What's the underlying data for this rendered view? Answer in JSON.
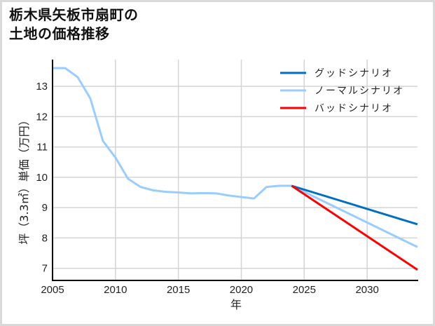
{
  "chart_data": {
    "type": "line",
    "title": "栃木県矢板市扇町の\n土地の価格推移",
    "xlabel": "年",
    "ylabel": "坪（3.3㎡）単価（万円）",
    "xlim": [
      2005,
      2034
    ],
    "ylim": [
      6.6,
      13.88
    ],
    "x_ticks": [
      2005,
      2010,
      2015,
      2020,
      2025,
      2030
    ],
    "y_ticks": [
      7,
      8,
      9,
      10,
      11,
      12,
      13
    ],
    "grid": true,
    "legend_position": "upper right",
    "series": [
      {
        "name": "ノーマルシナリオ",
        "color": "#99ccff",
        "x": [
          2005,
          2006,
          2007,
          2008,
          2009,
          2010,
          2011,
          2012,
          2013,
          2014,
          2015,
          2016,
          2017,
          2018,
          2019,
          2020,
          2021,
          2022,
          2023,
          2024,
          2034
        ],
        "values": [
          13.6,
          13.6,
          13.3,
          12.6,
          11.2,
          10.65,
          9.95,
          9.68,
          9.57,
          9.52,
          9.5,
          9.47,
          9.48,
          9.47,
          9.4,
          9.35,
          9.3,
          9.68,
          9.72,
          9.72,
          7.7
        ]
      },
      {
        "name": "グッドシナリオ",
        "color": "#0070c0",
        "x": [
          2024,
          2034
        ],
        "values": [
          9.72,
          8.45
        ]
      },
      {
        "name": "バッドシナリオ",
        "color": "#ff0000",
        "x": [
          2024,
          2034
        ],
        "values": [
          9.72,
          6.95
        ]
      }
    ],
    "legend": [
      {
        "label": "グッドシナリオ",
        "color": "#0070c0"
      },
      {
        "label": "ノーマルシナリオ",
        "color": "#99ccff"
      },
      {
        "label": "バッドシナリオ",
        "color": "#ff0000"
      }
    ]
  }
}
